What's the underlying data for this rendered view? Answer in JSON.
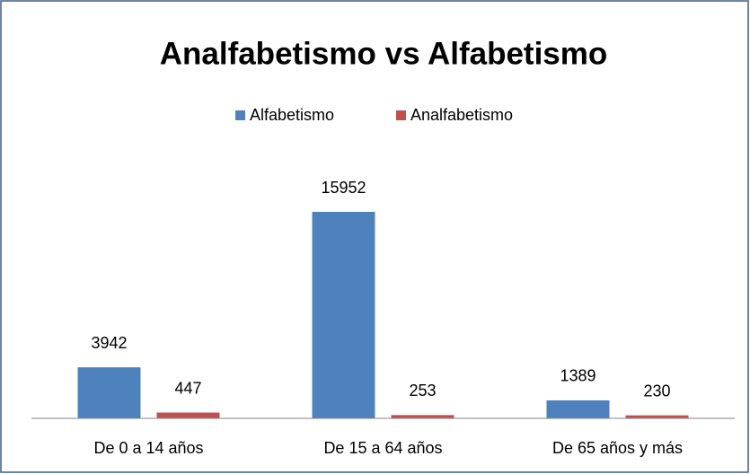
{
  "chart_data": {
    "type": "bar",
    "title": "Analfabetismo vs Alfabetismo",
    "categories": [
      "De 0 a 14 años",
      "De 15 a 64 años",
      "De 65 años y más"
    ],
    "series": [
      {
        "name": "Alfabetismo",
        "color": "#4f81bd",
        "values": [
          3942,
          15952,
          1389
        ]
      },
      {
        "name": "Analfabetismo",
        "color": "#c0504d",
        "values": [
          447,
          253,
          230
        ]
      }
    ],
    "legend": "top"
  }
}
